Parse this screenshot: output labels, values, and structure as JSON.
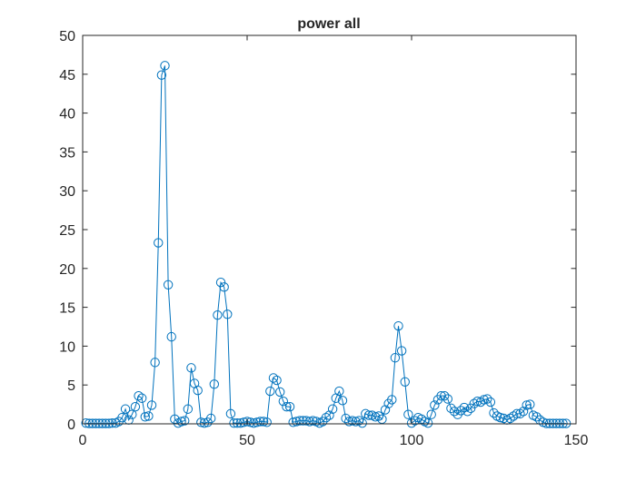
{
  "chart_data": {
    "type": "line",
    "title": "power all",
    "xlabel": "",
    "ylabel": "",
    "xlim": [
      0,
      150
    ],
    "ylim": [
      0,
      50
    ],
    "xticks": [
      0,
      50,
      100,
      150
    ],
    "yticks": [
      0,
      5,
      10,
      15,
      20,
      25,
      30,
      35,
      40,
      45,
      50
    ],
    "xtick_labels": [
      "0",
      "50",
      "100",
      "150"
    ],
    "ytick_labels": [
      "0",
      "5",
      "10",
      "15",
      "20",
      "25",
      "30",
      "35",
      "40",
      "45",
      "50"
    ],
    "grid": false,
    "legend": "none",
    "marker": "circle",
    "color": "#0072BD",
    "series": [
      {
        "x": [
          1,
          2,
          3,
          4,
          5,
          6,
          7,
          8,
          9,
          10,
          11,
          12,
          13,
          14,
          15,
          16,
          17,
          18,
          19,
          20,
          21,
          22,
          23,
          24,
          25,
          26,
          27,
          28,
          29,
          30,
          31,
          32,
          33,
          34,
          35,
          36,
          37,
          38,
          39,
          40,
          41,
          42,
          43,
          44,
          45,
          46,
          47,
          48,
          49,
          50,
          51,
          52,
          53,
          54,
          55,
          56,
          57,
          58,
          59,
          60,
          61,
          62,
          63,
          64,
          65,
          66,
          67,
          68,
          69,
          70,
          71,
          72,
          73,
          74,
          75,
          76,
          77,
          78,
          79,
          80,
          81,
          82,
          83,
          84,
          85,
          86,
          87,
          88,
          89,
          90,
          91,
          92,
          93,
          94,
          95,
          96,
          97,
          98,
          99,
          100,
          101,
          102,
          103,
          104,
          105,
          106,
          107,
          108,
          109,
          110,
          111,
          112,
          113,
          114,
          115,
          116,
          117,
          118,
          119,
          120,
          121,
          122,
          123,
          124,
          125,
          126,
          127,
          128,
          129,
          130,
          131,
          132,
          133,
          134,
          135,
          136,
          137,
          138,
          139,
          140,
          141,
          142,
          143,
          144,
          145,
          146,
          147
        ],
        "y": [
          0.1,
          0.05,
          0.05,
          0.05,
          0.05,
          0.05,
          0.05,
          0.05,
          0.1,
          0.1,
          0.3,
          0.8,
          1.9,
          0.5,
          1.2,
          2.2,
          3.6,
          3.3,
          0.9,
          1.0,
          2.4,
          7.9,
          23.3,
          44.9,
          46.1,
          17.9,
          11.2,
          0.6,
          0.1,
          0.3,
          0.4,
          1.9,
          7.2,
          5.2,
          4.3,
          0.2,
          0.1,
          0.2,
          0.7,
          5.1,
          14.0,
          18.2,
          17.6,
          14.1,
          1.3,
          0.1,
          0.1,
          0.1,
          0.2,
          0.3,
          0.2,
          0.1,
          0.2,
          0.3,
          0.3,
          0.2,
          4.2,
          5.9,
          5.6,
          4.1,
          2.9,
          2.2,
          2.2,
          0.2,
          0.3,
          0.4,
          0.4,
          0.4,
          0.3,
          0.4,
          0.3,
          0.1,
          0.3,
          0.8,
          1.1,
          1.9,
          3.3,
          4.2,
          3.0,
          0.7,
          0.3,
          0.4,
          0.3,
          0.4,
          0.1,
          1.3,
          1.1,
          1.1,
          0.9,
          1.0,
          0.6,
          1.8,
          2.6,
          3.1,
          8.5,
          12.6,
          9.4,
          5.4,
          1.2,
          0.1,
          0.4,
          0.8,
          0.6,
          0.3,
          0.1,
          1.2,
          2.4,
          3.1,
          3.6,
          3.6,
          3.2,
          2.0,
          1.6,
          1.2,
          1.7,
          2.1,
          1.6,
          2.0,
          2.6,
          2.9,
          2.8,
          3.1,
          3.2,
          2.8,
          1.4,
          1.0,
          0.8,
          0.7,
          0.5,
          0.7,
          1.0,
          1.3,
          1.3,
          1.6,
          2.4,
          2.5,
          1.1,
          0.9,
          0.5,
          0.2,
          0.05,
          0.05,
          0.05,
          0.05,
          0.05,
          0.05,
          0.05
        ]
      }
    ]
  }
}
